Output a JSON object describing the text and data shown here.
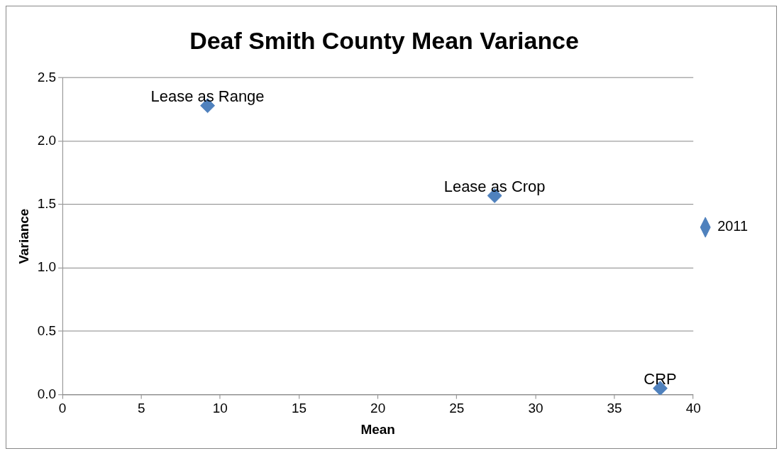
{
  "chart_data": {
    "type": "scatter",
    "title": "Deaf Smith County Mean Variance",
    "xlabel": "Mean",
    "ylabel": "Variance",
    "series": [
      {
        "name": "2011",
        "color": "#4f81bd",
        "x": [
          9.2,
          27.4,
          37.9
        ],
        "values": [
          2.28,
          1.57,
          0.05
        ]
      }
    ],
    "xlim": [
      0,
      40
    ],
    "xticks": [
      0,
      5,
      10,
      15,
      20,
      25,
      30,
      35,
      40
    ],
    "ylim": [
      0,
      2.5
    ],
    "yticks": [
      {
        "value": 0,
        "label": "0.0"
      },
      {
        "value": 0.5,
        "label": "0.5"
      },
      {
        "value": 1,
        "label": "1.0"
      },
      {
        "value": 1.5,
        "label": "1.5"
      },
      {
        "value": 2,
        "label": "2.0"
      },
      {
        "value": 2.5,
        "label": "2.5"
      }
    ],
    "annotations": [
      {
        "text": "Lease as Range",
        "x": 9.2,
        "y": 2.28
      },
      {
        "text": "Lease as Crop",
        "x": 27.4,
        "y": 1.57
      },
      {
        "text": "CRP",
        "x": 37.9,
        "y": 0.05
      }
    ],
    "grid": "y",
    "legend": "right",
    "marker": "diamond"
  }
}
